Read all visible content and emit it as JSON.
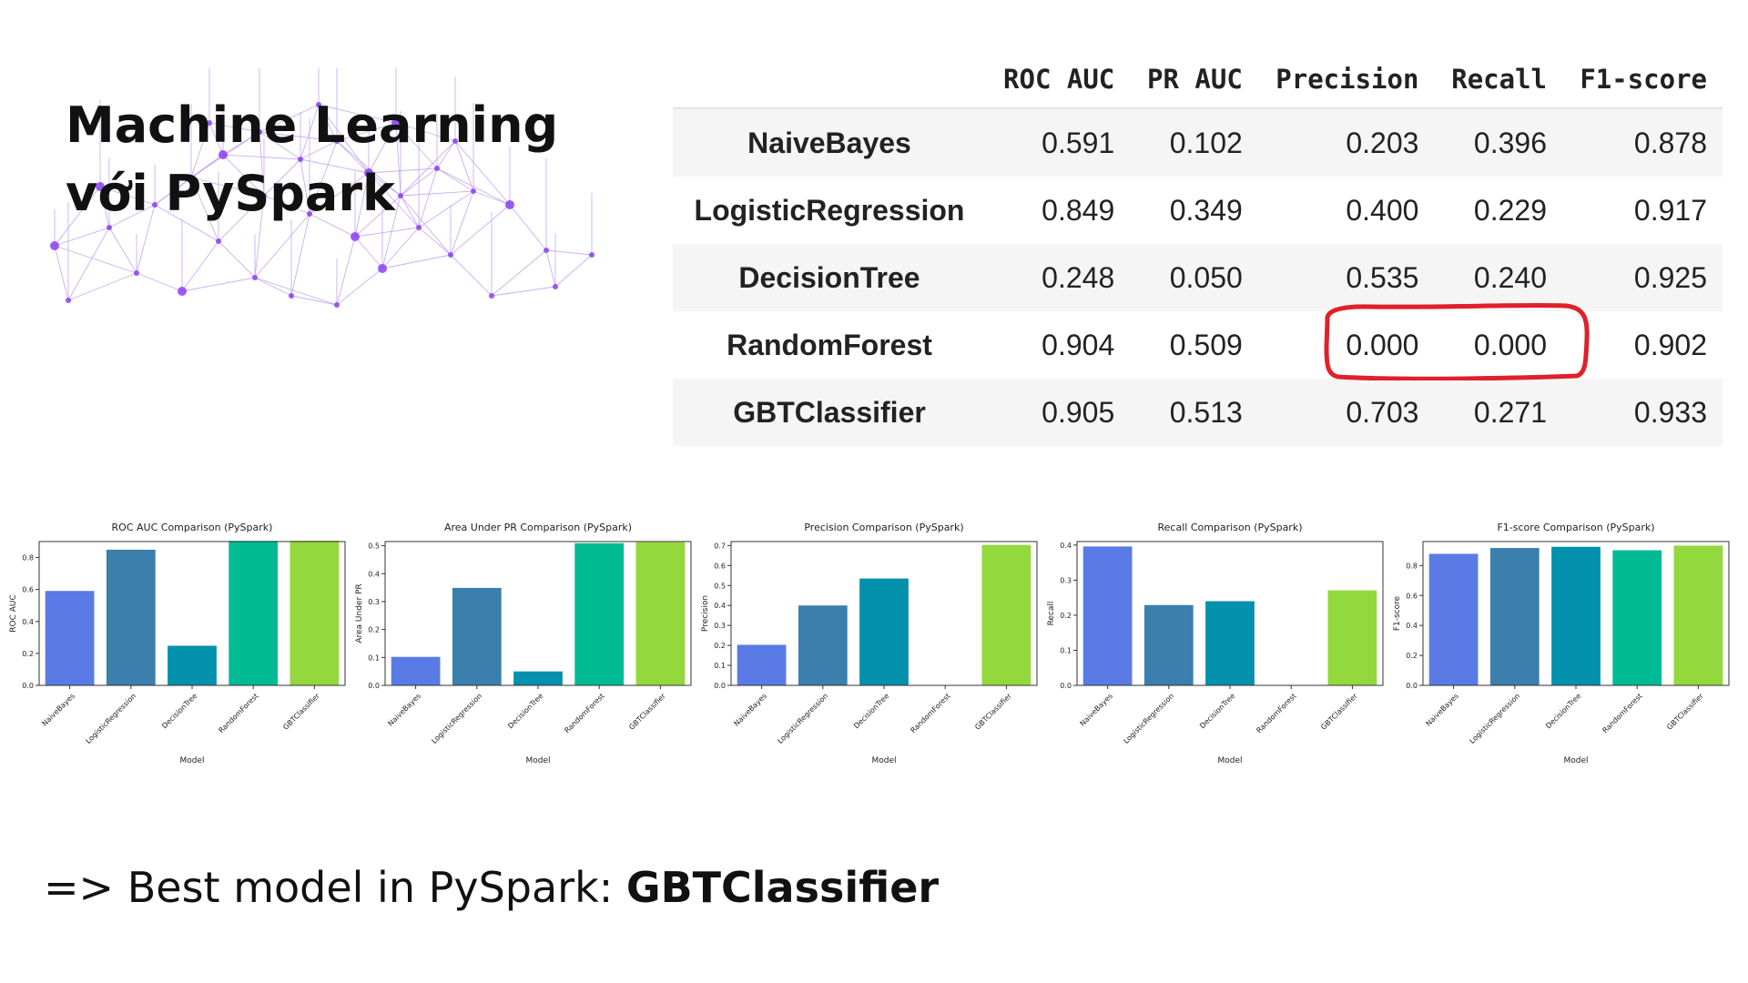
{
  "slide": {
    "title": "Machine Learning với PySpark",
    "conclusion_prefix": "=> Best model in PySpark: ",
    "conclusion_model": "GBTClassifier"
  },
  "table": {
    "columns": [
      "",
      "ROC AUC",
      "PR AUC",
      "Precision",
      "Recall",
      "F1-score"
    ],
    "rows": [
      {
        "model": "NaiveBayes",
        "values": [
          "0.591",
          "0.102",
          "0.203",
          "0.396",
          "0.878"
        ]
      },
      {
        "model": "LogisticRegression",
        "values": [
          "0.849",
          "0.349",
          "0.400",
          "0.229",
          "0.917"
        ]
      },
      {
        "model": "DecisionTree",
        "values": [
          "0.248",
          "0.050",
          "0.535",
          "0.240",
          "0.925"
        ]
      },
      {
        "model": "RandomForest",
        "values": [
          "0.904",
          "0.509",
          "0.000",
          "0.000",
          "0.902"
        ]
      },
      {
        "model": "GBTClassifier",
        "values": [
          "0.905",
          "0.513",
          "0.703",
          "0.271",
          "0.933"
        ]
      }
    ],
    "highlight_color": "#e0202a"
  },
  "colors": {
    "bars": [
      "#5a7be6",
      "#3b7fad",
      "#0391ad",
      "#00bb94",
      "#93d83c"
    ],
    "text": "#111111"
  },
  "chart_data": [
    {
      "type": "bar",
      "title": "ROC AUC Comparison (PySpark)",
      "xlabel": "Model",
      "ylabel": "ROC AUC",
      "categories": [
        "NaiveBayes",
        "LogisticRegression",
        "DecisionTree",
        "RandomForest",
        "GBTClassifier"
      ],
      "values": [
        0.591,
        0.849,
        0.248,
        0.904,
        0.905
      ],
      "ylim": [
        0,
        0.9
      ],
      "yticks": [
        "0.0",
        "0.2",
        "0.4",
        "0.6",
        "0.8"
      ],
      "ytick_values": [
        0,
        0.2,
        0.4,
        0.6,
        0.8
      ]
    },
    {
      "type": "bar",
      "title": "Area Under PR Comparison (PySpark)",
      "xlabel": "Model",
      "ylabel": "Area Under PR",
      "categories": [
        "NaiveBayes",
        "LogisticRegression",
        "DecisionTree",
        "RandomForest",
        "GBTClassifier"
      ],
      "values": [
        0.102,
        0.349,
        0.05,
        0.509,
        0.513
      ],
      "ylim": [
        0,
        0.515
      ],
      "yticks": [
        "0.0",
        "0.1",
        "0.2",
        "0.3",
        "0.4",
        "0.5"
      ],
      "ytick_values": [
        0,
        0.1,
        0.2,
        0.3,
        0.4,
        0.5
      ]
    },
    {
      "type": "bar",
      "title": "Precision Comparison (PySpark)",
      "xlabel": "Model",
      "ylabel": "Precision",
      "categories": [
        "NaiveBayes",
        "LogisticRegression",
        "DecisionTree",
        "RandomForest",
        "GBTClassifier"
      ],
      "values": [
        0.203,
        0.4,
        0.535,
        0.0,
        0.703
      ],
      "ylim": [
        0,
        0.72
      ],
      "yticks": [
        "0.0",
        "0.1",
        "0.2",
        "0.3",
        "0.4",
        "0.5",
        "0.6",
        "0.7"
      ],
      "ytick_values": [
        0,
        0.1,
        0.2,
        0.3,
        0.4,
        0.5,
        0.6,
        0.7
      ]
    },
    {
      "type": "bar",
      "title": "Recall Comparison (PySpark)",
      "xlabel": "Model",
      "ylabel": "Recall",
      "categories": [
        "NaiveBayes",
        "LogisticRegression",
        "DecisionTree",
        "RandomForest",
        "GBTClassifier"
      ],
      "values": [
        0.396,
        0.229,
        0.24,
        0.0,
        0.271
      ],
      "ylim": [
        0,
        0.41
      ],
      "yticks": [
        "0.0",
        "0.1",
        "0.2",
        "0.3",
        "0.4"
      ],
      "ytick_values": [
        0,
        0.1,
        0.2,
        0.3,
        0.4
      ]
    },
    {
      "type": "bar",
      "title": "F1-score Comparison (PySpark)",
      "xlabel": "Model",
      "ylabel": "F1-score",
      "categories": [
        "NaiveBayes",
        "LogisticRegression",
        "DecisionTree",
        "RandomForest",
        "GBTClassifier"
      ],
      "values": [
        0.878,
        0.917,
        0.925,
        0.902,
        0.933
      ],
      "ylim": [
        0,
        0.96
      ],
      "yticks": [
        "0.0",
        "0.2",
        "0.4",
        "0.6",
        "0.8"
      ],
      "ytick_values": [
        0,
        0.2,
        0.4,
        0.6,
        0.8
      ]
    }
  ]
}
